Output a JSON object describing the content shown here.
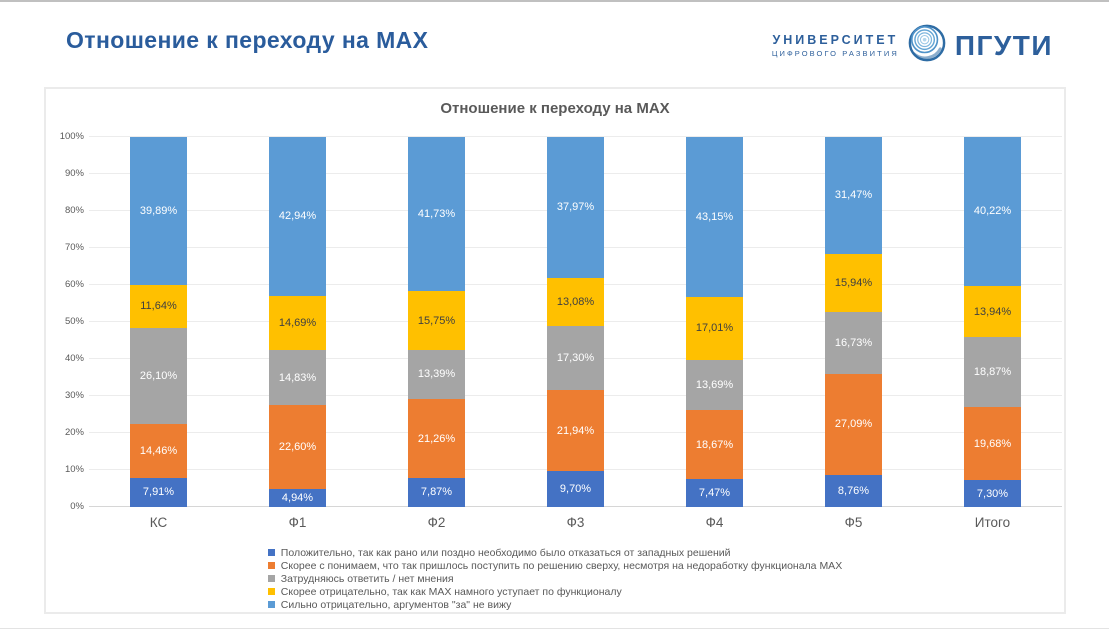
{
  "page": {
    "title": "Отношение к переходу на MAX",
    "accent_color": "#2a5c9c"
  },
  "logo": {
    "line1": "УНИВЕРСИТЕТ",
    "line2": "ЦИФРОВОГО РАЗВИТИЯ",
    "brand": "ПГУТИ",
    "brand_color": "#2d5f9b",
    "globe_icon": "concentric-circles-globe"
  },
  "chart_data": {
    "type": "bar",
    "stacked": true,
    "percent_stacked": true,
    "title": "Отношение к переходу на MAX",
    "categories": [
      "КС",
      "Ф1",
      "Ф2",
      "Ф3",
      "Ф4",
      "Ф5",
      "Итого"
    ],
    "series": [
      {
        "name": "Положительно, так как рано или поздно необходимо было отказаться от западных решений",
        "color": "#4472C4",
        "label_color": "#ffffff",
        "values": [
          7.91,
          4.94,
          7.87,
          9.7,
          7.47,
          8.76,
          7.3
        ]
      },
      {
        "name": "Скорее с понимаем, что так пришлось поступить по решению сверху, несмотря на недоработку функционала MAX",
        "color": "#ED7D31",
        "label_color": "#ffffff",
        "values": [
          14.46,
          22.6,
          21.26,
          21.94,
          18.67,
          27.09,
          19.68
        ]
      },
      {
        "name": "Затрудняюсь ответить / нет мнения",
        "color": "#A5A5A5",
        "label_color": "#ffffff",
        "values": [
          26.1,
          14.83,
          13.39,
          17.3,
          13.69,
          16.73,
          18.87
        ]
      },
      {
        "name": "Скорее отрицательно, так как MAX намного уступает по функционалу",
        "color": "#FFC000",
        "label_color": "#404040",
        "values": [
          11.64,
          14.69,
          15.75,
          13.08,
          17.01,
          15.94,
          13.94
        ]
      },
      {
        "name": "Сильно отрицательно, аргументов \"за\" не вижу",
        "color": "#5B9BD5",
        "label_color": "#ffffff",
        "values": [
          39.89,
          42.94,
          41.73,
          37.97,
          43.15,
          31.47,
          40.22
        ]
      }
    ],
    "y_ticks": [
      "0%",
      "10%",
      "20%",
      "30%",
      "40%",
      "50%",
      "60%",
      "70%",
      "80%",
      "90%",
      "100%"
    ],
    "ylim": [
      0,
      100
    ],
    "grid": true,
    "legend_position": "bottom",
    "decimal_separator": ","
  }
}
